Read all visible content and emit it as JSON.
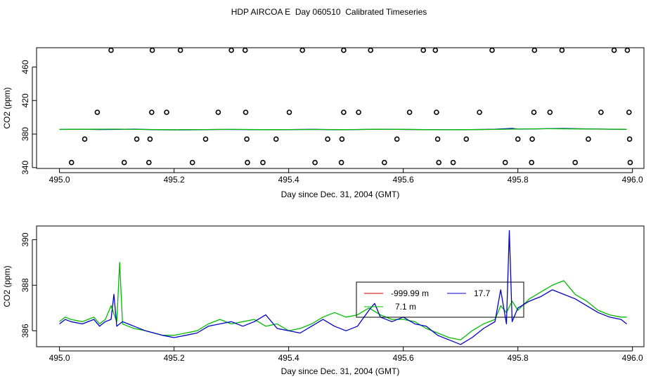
{
  "title": "HDP AIRCOA E  Day 060510  Calibrated Timeseries",
  "chart_data": [
    {
      "type": "scatter",
      "xlabel": "Day since Dec. 31, 2004 (GMT)",
      "ylabel": "CO2 (ppm)",
      "xlim": [
        494.96,
        496.02
      ],
      "ylim": [
        339,
        483
      ],
      "xticks": [
        "495.0",
        "495.2",
        "495.4",
        "495.6",
        "495.8",
        "496.0"
      ],
      "yticks": [
        "340",
        "380",
        "420",
        "460"
      ],
      "points": [
        [
          495.09,
          480
        ],
        [
          495.162,
          480
        ],
        [
          495.211,
          480
        ],
        [
          495.3,
          480
        ],
        [
          495.324,
          480
        ],
        [
          495.424,
          480
        ],
        [
          495.496,
          480
        ],
        [
          495.543,
          480
        ],
        [
          495.635,
          480
        ],
        [
          495.656,
          480
        ],
        [
          495.755,
          480
        ],
        [
          495.829,
          480
        ],
        [
          495.877,
          480
        ],
        [
          495.968,
          480
        ],
        [
          495.991,
          480
        ],
        [
          495.066,
          406
        ],
        [
          495.161,
          406
        ],
        [
          495.187,
          406
        ],
        [
          495.277,
          406
        ],
        [
          495.325,
          406
        ],
        [
          495.401,
          406
        ],
        [
          495.496,
          406
        ],
        [
          495.522,
          406
        ],
        [
          495.611,
          406
        ],
        [
          495.658,
          406
        ],
        [
          495.733,
          406
        ],
        [
          495.828,
          406
        ],
        [
          495.856,
          406
        ],
        [
          495.945,
          406
        ],
        [
          495.994,
          406
        ],
        [
          495.044,
          374
        ],
        [
          495.135,
          374
        ],
        [
          495.158,
          374
        ],
        [
          495.255,
          374
        ],
        [
          495.327,
          374
        ],
        [
          495.378,
          374
        ],
        [
          495.468,
          374
        ],
        [
          495.493,
          374
        ],
        [
          495.589,
          374
        ],
        [
          495.66,
          374
        ],
        [
          495.71,
          374
        ],
        [
          495.8,
          374
        ],
        [
          495.825,
          374
        ],
        [
          495.923,
          374
        ],
        [
          495.995,
          374
        ],
        [
          495.021,
          346
        ],
        [
          495.113,
          346
        ],
        [
          495.156,
          346
        ],
        [
          495.232,
          346
        ],
        [
          495.328,
          346
        ],
        [
          495.355,
          346
        ],
        [
          495.446,
          346
        ],
        [
          495.492,
          346
        ],
        [
          495.567,
          346
        ],
        [
          495.662,
          346
        ],
        [
          495.687,
          346
        ],
        [
          495.778,
          346
        ],
        [
          495.824,
          346
        ],
        [
          495.9,
          346
        ],
        [
          495.996,
          346
        ]
      ],
      "series": [
        {
          "color": "#0000cc",
          "x": [
            495.0,
            495.03,
            495.07,
            495.1,
            495.13,
            495.16,
            495.2,
            495.24,
            495.28,
            495.32,
            495.36,
            495.4,
            495.44,
            495.48,
            495.52,
            495.56,
            495.6,
            495.64,
            495.68,
            495.72,
            495.76,
            495.79,
            495.8,
            495.84,
            495.88,
            495.92,
            495.96,
            495.99
          ],
          "y": [
            385.5,
            385.8,
            385.4,
            385.6,
            385.9,
            385.3,
            385.0,
            385.2,
            385.5,
            385.4,
            385.1,
            385.3,
            385.6,
            385.2,
            385.4,
            385.8,
            385.5,
            385.3,
            385.1,
            385.4,
            385.7,
            386.8,
            385.9,
            386.3,
            386.7,
            386.2,
            385.8,
            385.6
          ]
        },
        {
          "color": "#00bb00",
          "x": [
            495.0,
            495.05,
            495.1,
            495.15,
            495.2,
            495.25,
            495.3,
            495.35,
            495.4,
            495.45,
            495.5,
            495.55,
            495.6,
            495.65,
            495.7,
            495.75,
            495.8,
            495.85,
            495.9,
            495.95,
            495.99
          ],
          "y": [
            385.6,
            385.7,
            385.9,
            385.5,
            385.2,
            385.4,
            385.6,
            385.3,
            385.4,
            385.5,
            385.3,
            385.7,
            385.6,
            385.2,
            385.3,
            385.5,
            386.0,
            386.4,
            386.1,
            385.9,
            385.7
          ]
        }
      ]
    },
    {
      "type": "line",
      "xlabel": "Day since Dec. 31, 2004 (GMT)",
      "ylabel": "CO2 (ppm)",
      "xlim": [
        494.96,
        496.02
      ],
      "ylim": [
        385.3,
        390.6
      ],
      "xticks": [
        "495.0",
        "495.2",
        "495.4",
        "495.6",
        "495.8",
        "496.0"
      ],
      "yticks": [
        "386",
        "388",
        "390"
      ],
      "legend": {
        "position": "center-right",
        "entries": [
          {
            "label": "-999.99 m",
            "color": "#cc0000"
          },
          {
            "label": "17.7",
            "color": "#0000cc"
          },
          {
            "label": "7.1 m",
            "color": "#00bb00"
          }
        ]
      },
      "series": [
        {
          "color": "#00bb00",
          "x": [
            495.0,
            495.01,
            495.02,
            495.04,
            495.06,
            495.07,
            495.08,
            495.09,
            495.1,
            495.105,
            495.11,
            495.12,
            495.13,
            495.15,
            495.18,
            495.2,
            495.22,
            495.24,
            495.26,
            495.28,
            495.3,
            495.32,
            495.34,
            495.36,
            495.38,
            495.4,
            495.42,
            495.44,
            495.46,
            495.48,
            495.5,
            495.52,
            495.54,
            495.56,
            495.58,
            495.6,
            495.62,
            495.64,
            495.66,
            495.68,
            495.7,
            495.72,
            495.74,
            495.76,
            495.77,
            495.78,
            495.79,
            495.8,
            495.82,
            495.84,
            495.86,
            495.88,
            495.9,
            495.92,
            495.94,
            495.96,
            495.98,
            495.99
          ],
          "y": [
            386.4,
            386.6,
            386.5,
            386.4,
            386.6,
            386.3,
            386.5,
            387.1,
            386.4,
            389.0,
            386.3,
            386.2,
            386.1,
            386.0,
            385.8,
            385.8,
            385.9,
            386.0,
            386.3,
            386.5,
            386.3,
            386.4,
            386.5,
            386.2,
            386.3,
            386.0,
            386.1,
            386.3,
            386.6,
            386.8,
            386.6,
            386.7,
            387.0,
            386.7,
            386.5,
            386.5,
            386.4,
            386.1,
            385.9,
            385.7,
            385.6,
            386.0,
            386.3,
            386.5,
            387.1,
            386.8,
            387.3,
            386.9,
            387.4,
            387.7,
            388.0,
            388.2,
            387.6,
            387.3,
            386.9,
            386.7,
            386.6,
            386.6
          ]
        },
        {
          "color": "#0000cc",
          "x": [
            495.0,
            495.01,
            495.02,
            495.04,
            495.06,
            495.07,
            495.08,
            495.09,
            495.095,
            495.1,
            495.11,
            495.12,
            495.13,
            495.15,
            495.18,
            495.2,
            495.22,
            495.24,
            495.26,
            495.28,
            495.3,
            495.32,
            495.34,
            495.36,
            495.38,
            495.4,
            495.42,
            495.44,
            495.46,
            495.48,
            495.5,
            495.52,
            495.54,
            495.55,
            495.56,
            495.58,
            495.6,
            495.62,
            495.64,
            495.66,
            495.68,
            495.7,
            495.72,
            495.74,
            495.76,
            495.77,
            495.78,
            495.785,
            495.79,
            495.8,
            495.82,
            495.84,
            495.86,
            495.88,
            495.9,
            495.92,
            495.94,
            495.96,
            495.98,
            495.99
          ],
          "y": [
            386.3,
            386.5,
            386.4,
            386.3,
            386.5,
            386.2,
            386.4,
            386.5,
            387.6,
            386.2,
            386.4,
            386.3,
            386.2,
            386.0,
            385.8,
            385.7,
            385.8,
            385.9,
            386.2,
            386.3,
            386.4,
            386.2,
            386.4,
            386.7,
            386.1,
            386.0,
            385.9,
            386.2,
            386.5,
            386.2,
            386.0,
            386.2,
            386.9,
            387.2,
            386.6,
            386.4,
            386.6,
            386.3,
            386.2,
            385.8,
            385.6,
            385.4,
            385.7,
            386.1,
            386.4,
            387.8,
            386.3,
            390.4,
            386.4,
            387.0,
            387.3,
            387.5,
            387.8,
            387.6,
            387.4,
            387.1,
            386.8,
            386.6,
            386.5,
            386.3
          ]
        }
      ]
    }
  ]
}
